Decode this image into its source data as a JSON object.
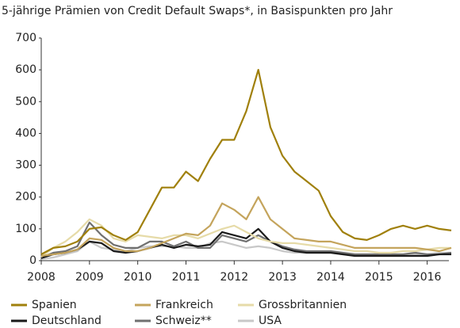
{
  "chart_data": {
    "type": "line",
    "title": "5-jährige Prämien von Credit Default Swaps*, in Basispunkten pro Jahr",
    "x": [
      2008,
      2008.25,
      2008.5,
      2008.75,
      2009,
      2009.25,
      2009.5,
      2009.75,
      2010,
      2010.25,
      2010.5,
      2010.75,
      2011,
      2011.25,
      2011.5,
      2011.75,
      2012,
      2012.25,
      2012.5,
      2012.75,
      2013,
      2013.25,
      2013.5,
      2013.75,
      2014,
      2014.25,
      2014.5,
      2014.75,
      2015,
      2015.25,
      2015.5,
      2015.75,
      2016,
      2016.25,
      2016.5
    ],
    "series": [
      {
        "name": "Spanien",
        "color": "#a0800c",
        "values": [
          20,
          40,
          45,
          60,
          100,
          105,
          80,
          65,
          90,
          160,
          230,
          230,
          280,
          250,
          320,
          380,
          380,
          470,
          600,
          420,
          330,
          280,
          250,
          220,
          140,
          90,
          70,
          65,
          80,
          100,
          110,
          100,
          110,
          100,
          95
        ]
      },
      {
        "name": "Frankreich",
        "color": "#c4a45c",
        "values": [
          15,
          20,
          25,
          35,
          70,
          65,
          40,
          30,
          30,
          40,
          55,
          70,
          85,
          80,
          110,
          180,
          160,
          130,
          200,
          130,
          100,
          70,
          65,
          60,
          60,
          50,
          40,
          40,
          40,
          40,
          40,
          40,
          35,
          30,
          40
        ]
      },
      {
        "name": "Grossbritannien",
        "color": "#e6dba8",
        "values": [
          12,
          40,
          60,
          90,
          130,
          110,
          70,
          60,
          80,
          75,
          70,
          80,
          80,
          70,
          85,
          100,
          110,
          90,
          70,
          60,
          55,
          55,
          50,
          45,
          40,
          35,
          30,
          30,
          25,
          25,
          30,
          30,
          35,
          40,
          40
        ]
      },
      {
        "name": "Deutschland",
        "color": "#1a1a1a",
        "values": [
          8,
          20,
          25,
          35,
          60,
          55,
          30,
          25,
          30,
          40,
          50,
          40,
          50,
          45,
          50,
          90,
          80,
          70,
          100,
          60,
          40,
          30,
          25,
          25,
          25,
          20,
          15,
          15,
          15,
          15,
          15,
          15,
          15,
          20,
          20
        ]
      },
      {
        "name": "Schweiz**",
        "color": "#707070",
        "values": [
          10,
          25,
          30,
          45,
          120,
          80,
          50,
          40,
          40,
          60,
          60,
          45,
          60,
          40,
          40,
          80,
          70,
          60,
          80,
          60,
          45,
          35,
          30,
          30,
          30,
          25,
          20,
          20,
          20,
          20,
          20,
          25,
          20,
          20,
          25
        ]
      },
      {
        "name": "USA",
        "color": "#c8c8c8",
        "values": [
          5,
          10,
          20,
          30,
          60,
          40,
          35,
          30,
          40,
          45,
          45,
          45,
          40,
          40,
          55,
          60,
          50,
          40,
          45,
          40,
          30,
          25,
          25,
          25,
          25,
          20,
          20,
          20,
          20,
          20,
          20,
          20,
          20,
          25,
          25
        ]
      }
    ],
    "xlim": [
      2008,
      2016.45
    ],
    "xticks": [
      2008,
      2009,
      2010,
      2011,
      2012,
      2013,
      2014,
      2015,
      2016
    ],
    "ylim": [
      0,
      700
    ],
    "yticks": [
      0,
      100,
      200,
      300,
      400,
      500,
      600,
      700
    ]
  }
}
